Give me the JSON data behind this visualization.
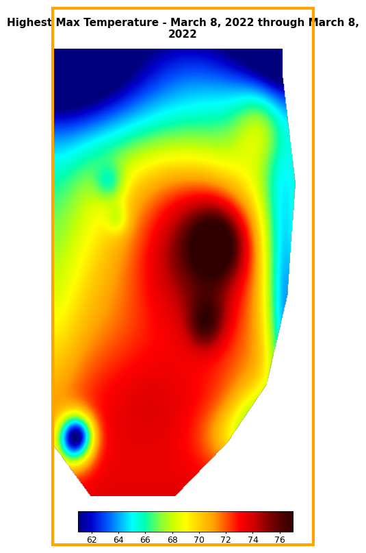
{
  "title": "Highest Max Temperature - March 8, 2022 through March 8,\n2022",
  "colorbar_ticks": [
    62,
    64,
    66,
    68,
    70,
    72,
    74,
    76
  ],
  "vmin": 61,
  "vmax": 77,
  "border_color": "#FFA500",
  "background_color": "#FFFFFF",
  "title_fontsize": 11,
  "title_fontweight": "bold",
  "cb_label_fontsize": 9,
  "fig_width": 3.83,
  "fig_height": 7.87,
  "colormap_colors": [
    [
      0.0,
      "#00007F"
    ],
    [
      0.06,
      "#0000CD"
    ],
    [
      0.13,
      "#0050FF"
    ],
    [
      0.19,
      "#00AAFF"
    ],
    [
      0.25,
      "#00FFFF"
    ],
    [
      0.31,
      "#00FFB0"
    ],
    [
      0.38,
      "#80FF40"
    ],
    [
      0.44,
      "#CCFF00"
    ],
    [
      0.5,
      "#FFFF00"
    ],
    [
      0.56,
      "#FFD000"
    ],
    [
      0.63,
      "#FFA000"
    ],
    [
      0.69,
      "#FF5000"
    ],
    [
      0.75,
      "#FF0000"
    ],
    [
      0.82,
      "#CC0000"
    ],
    [
      0.88,
      "#880000"
    ],
    [
      0.94,
      "#550000"
    ],
    [
      1.0,
      "#300000"
    ]
  ]
}
